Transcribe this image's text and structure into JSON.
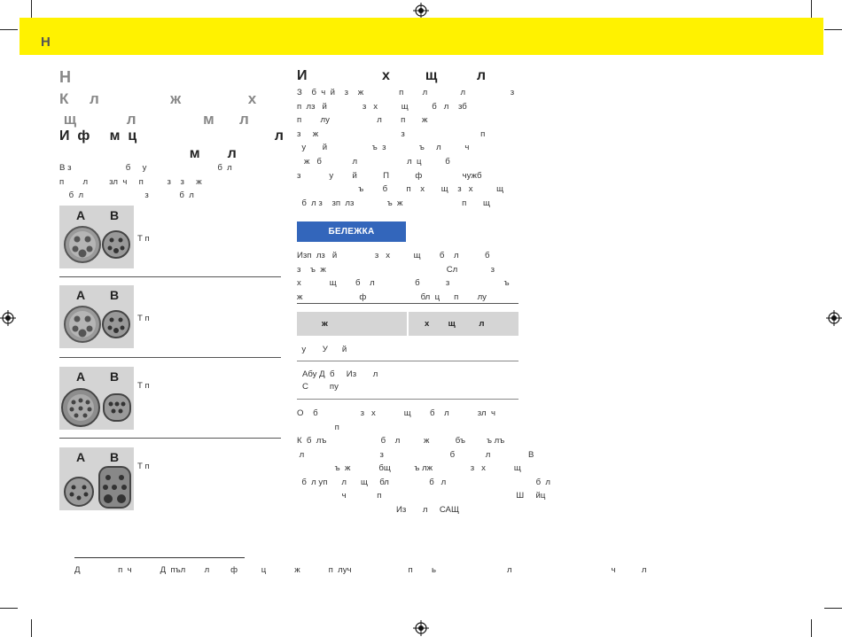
{
  "header": {
    "label": "Н"
  },
  "left": {
    "section_title": "Н",
    "subtitle": "К     л                 ж                х\n щ            л                м      л",
    "info_heading": "И  ф     м  ц                                   л\n                                 м       л",
    "intro": "В з                       б     у                              б  л\nп        л         зл  ч     п          з    з     ж\n    б  л                          з             б  л",
    "connectors": [
      {
        "letter_a": "A",
        "letter_b": "B",
        "text": "Т    п"
      },
      {
        "letter_a": "A",
        "letter_b": "B",
        "text": "Т    п"
      },
      {
        "letter_a": "A",
        "letter_b": "B",
        "text": "Т    п"
      },
      {
        "letter_a": "A",
        "letter_b": "B",
        "text": "Т    п"
      }
    ]
  },
  "right": {
    "heading": "И                   х         щ          л",
    "body": "З    б  ч  й    з    ж               п        л              л                   з\nп  лз   й               з   х          щ          б   л    зб\nп        лу                    л        п       ж\nз     ж                                   з                                п\n  у       й                   ъ  з              ъ     л          ч\n   ж   б             л                     л  ц          б\nз            у        й           П           ф                 чужб\n                          ъ        б        п    х       щ    з   х          щ\n  б  л з    зп  лз              ъ  ж                         п       щ",
    "note_label": "БЕЛЕЖКА",
    "note_text": "Изп  лз   й                з   х          щ        б    л           б\nз    ъ  ж                                                   Сл              з\nх            щ        б    л                 б           з                       ъ\nж                        ф                       бл  ц      п        лу",
    "table": {
      "headers": [
        "ж",
        "х        щ          л"
      ],
      "rows": [
        [
          "  у       У      й",
          ""
        ],
        [
          "Абу Д  б     Из       л\nС         пу",
          ""
        ]
      ]
    },
    "after_table_1": "О    б                  з   х            щ        б    л            зл  ч\n                п",
    "after_table_2": "К  б  лъ                       б    л          ж           бъ         ъ лъ\n л                                з                            б             л                В\n                ъ  ж            бщ          ъ лж                з   х            щ\n  б  л уп      л      щ     бл                 б   л                                      б  л\n                   ч             п                                                         Ш     йц\n                                          Из       л     САЩ"
  },
  "footnote": "Д                п  ч            Д  пъл        л         ф          ц            ж            п  луч                        п        ь                              л                                          ч           л"
}
